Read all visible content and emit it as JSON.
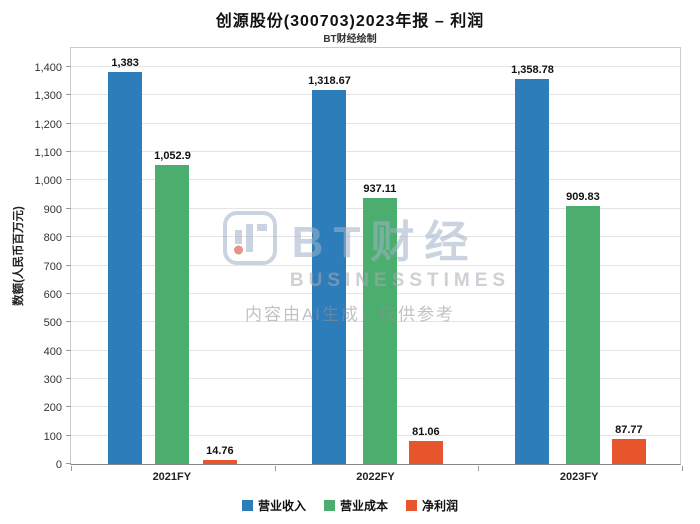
{
  "header": {
    "title": "创源股份(300703)2023年报 – 利润",
    "subtitle": "BT财经绘制"
  },
  "watermark": {
    "brand_cn": "BT财经",
    "brand_en": "BUSINESSTIMES",
    "ai_notice": "内容由AI生成，仅供参考"
  },
  "chart_data": {
    "type": "bar",
    "title": "创源股份(300703)2023年报 – 利润",
    "subtitle": "BT财经绘制",
    "xlabel": "",
    "ylabel": "数额(人民币百万元)",
    "ylim": [
      0,
      1400
    ],
    "ytick_step": 100,
    "yticks": [
      "0",
      "100",
      "200",
      "300",
      "400",
      "500",
      "600",
      "700",
      "800",
      "900",
      "1,000",
      "1,100",
      "1,200",
      "1,300",
      "1,400"
    ],
    "grid": true,
    "legend_position": "bottom",
    "categories": [
      "2021FY",
      "2022FY",
      "2023FY"
    ],
    "series": [
      {
        "name": "营业收入",
        "color": "#2d7dbb",
        "values": [
          1383,
          1318.67,
          1358.78
        ],
        "labels": [
          "1,383",
          "1,318.67",
          "1,358.78"
        ]
      },
      {
        "name": "营业成本",
        "color": "#4cae6e",
        "values": [
          1052.9,
          937.11,
          909.83
        ],
        "labels": [
          "1,052.9",
          "937.11",
          "909.83"
        ]
      },
      {
        "name": "净利润",
        "color": "#e8542c",
        "values": [
          14.76,
          81.06,
          87.77
        ],
        "labels": [
          "14.76",
          "81.06",
          "87.77"
        ]
      }
    ]
  }
}
